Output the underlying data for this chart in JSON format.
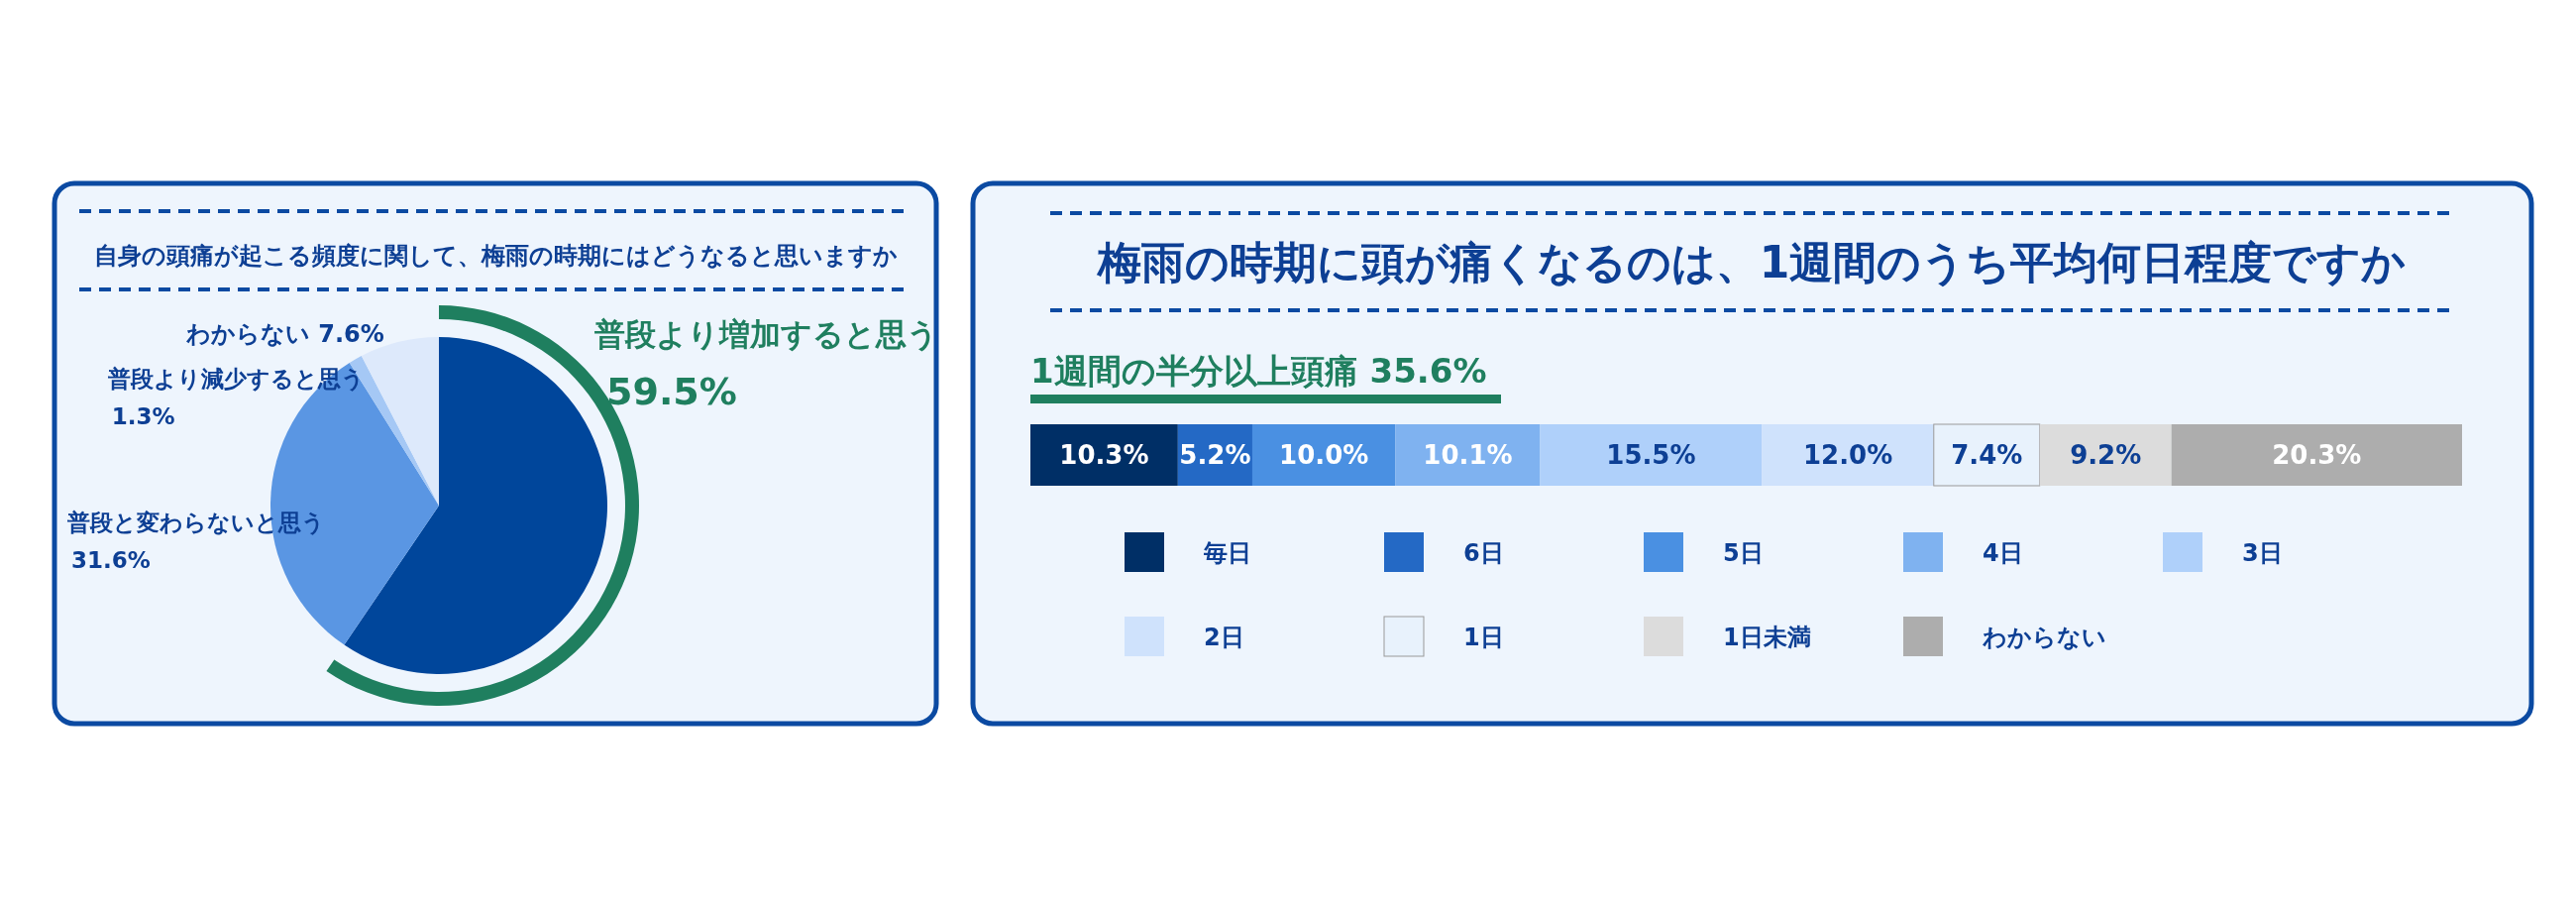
{
  "chart_data": [
    {
      "type": "pie",
      "title": "自身の頭痛が起こる頻度に関して、梅雨の時期にはどうなると思いますか",
      "categories": [
        "普段より増加すると思う",
        "普段と変わらないと思う",
        "普段より減少すると思う",
        "わからない"
      ],
      "values": [
        59.5,
        31.6,
        1.3,
        7.6
      ],
      "colors": [
        "#00469b",
        "#5a96e3",
        "#a5c8f5",
        "#dde9fb"
      ],
      "value_labels": [
        "59.5%",
        "31.6%",
        "1.3%",
        "7.6%"
      ]
    },
    {
      "type": "bar",
      "title": "梅雨の時期に頭が痛くなるのは、1週間のうち平均何日程度ですか",
      "subtitle": "1週間の半分以上頭痛 35.6%",
      "orientation": "horizontal",
      "stacked": true,
      "categories": [
        null
      ],
      "legend": "bottom",
      "series": [
        {
          "name": "毎日",
          "color": "#002f66",
          "values": [
            10.3
          ],
          "value_labels": [
            "10.3%"
          ]
        },
        {
          "name": "6日",
          "color": "#2469c5",
          "values": [
            5.2
          ],
          "value_labels": [
            "5.2%"
          ]
        },
        {
          "name": "5日",
          "color": "#4a90e2",
          "values": [
            10.0
          ],
          "value_labels": [
            "10.0%"
          ]
        },
        {
          "name": "4日",
          "color": "#7fb2f0",
          "values": [
            10.1
          ],
          "value_labels": [
            "10.1%"
          ]
        },
        {
          "name": "3日",
          "color": "#afd0fa",
          "values": [
            15.5
          ],
          "value_labels": [
            "15.5%"
          ]
        },
        {
          "name": "2日",
          "color": "#cfe2fc",
          "values": [
            12.0
          ],
          "value_labels": [
            "12.0%"
          ]
        },
        {
          "name": "1日",
          "color": "#e8f2fc",
          "values": [
            7.4
          ],
          "value_labels": [
            "7.4%"
          ]
        },
        {
          "name": "1日未満",
          "color": "#dcdcdc",
          "values": [
            9.2
          ],
          "value_labels": [
            "9.2%"
          ]
        },
        {
          "name": "わからない",
          "color": "#adadad",
          "values": [
            20.3
          ],
          "value_labels": [
            "20.3%"
          ]
        }
      ]
    }
  ]
}
